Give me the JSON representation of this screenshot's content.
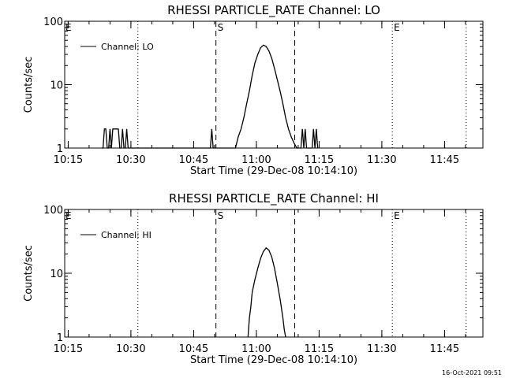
{
  "footer": {
    "timestamp": "16-Oct-2021 09:51"
  },
  "chart_data": [
    {
      "type": "line",
      "title": "RHESSI PARTICLE_RATE Channel: LO",
      "xlabel": "Start Time (29-Dec-08 10:14:10)",
      "ylabel": "Counts/sec",
      "yscale": "log",
      "ylim": [
        1,
        100
      ],
      "xlim_minutes": [
        "10:14:10",
        "11:54:10"
      ],
      "x_ticks": [
        "10:15",
        "10:30",
        "10:45",
        "11:00",
        "11:15",
        "11:30",
        "11:45"
      ],
      "y_ticks": [
        "1",
        "10",
        "100"
      ],
      "legend": {
        "position": "top-left",
        "entries": [
          "Channel: LO"
        ]
      },
      "vlines": [
        {
          "time": "10:31:40",
          "style": "dotted",
          "label": ""
        },
        {
          "time": "10:50:20",
          "style": "dashed",
          "label": "S"
        },
        {
          "time": "11:09:10",
          "style": "dashed",
          "label": ""
        },
        {
          "time": "11:32:30",
          "style": "dotted",
          "label": "E"
        },
        {
          "time": "11:50:10",
          "style": "dotted",
          "label": ""
        }
      ],
      "edge_label": "E",
      "series": [
        {
          "name": "Channel: LO",
          "x": [
            "10:23:00",
            "10:23:20",
            "10:23:40",
            "10:24:00",
            "10:24:20",
            "10:24:40",
            "10:25:00",
            "10:25:20",
            "10:25:40",
            "10:26:00",
            "10:26:20",
            "10:26:40",
            "10:27:00",
            "10:27:20",
            "10:27:40",
            "10:28:00",
            "10:28:20",
            "10:28:40",
            "10:29:00",
            "10:29:20",
            "10:29:40",
            "10:49:00",
            "10:49:20",
            "10:49:40",
            "10:50:00",
            "10:55:00",
            "10:55:40",
            "10:56:20",
            "10:57:00",
            "10:57:40",
            "10:58:20",
            "10:59:00",
            "10:59:40",
            "11:00:20",
            "11:01:00",
            "11:01:40",
            "11:02:20",
            "11:03:00",
            "11:03:40",
            "11:04:20",
            "11:05:00",
            "11:05:40",
            "11:06:20",
            "11:07:00",
            "11:07:40",
            "11:08:20",
            "11:09:00",
            "11:09:40",
            "11:10:20",
            "11:10:40",
            "11:11:00",
            "11:11:20",
            "11:11:40",
            "11:12:00",
            "11:13:20",
            "11:13:40",
            "11:14:00",
            "11:14:20",
            "11:14:40"
          ],
          "values": [
            1,
            1,
            2,
            2,
            1,
            1,
            2,
            1,
            2,
            2,
            2,
            2,
            2,
            1,
            1,
            2,
            1,
            1,
            2,
            1,
            1,
            1,
            2,
            1,
            1,
            1,
            1.5,
            2,
            3,
            5,
            8,
            14,
            22,
            30,
            38,
            42,
            40,
            34,
            26,
            18,
            12,
            8,
            5,
            3,
            2,
            1.5,
            1.2,
            1,
            1,
            1,
            2,
            1,
            2,
            1,
            1,
            2,
            1,
            2,
            1
          ]
        }
      ]
    },
    {
      "type": "line",
      "title": "RHESSI PARTICLE_RATE Channel: HI",
      "xlabel": "Start Time (29-Dec-08 10:14:10)",
      "ylabel": "Counts/sec",
      "yscale": "log",
      "ylim": [
        1,
        100
      ],
      "xlim_minutes": [
        "10:14:10",
        "11:54:10"
      ],
      "x_ticks": [
        "10:15",
        "10:30",
        "10:45",
        "11:00",
        "11:15",
        "11:30",
        "11:45"
      ],
      "y_ticks": [
        "1",
        "10",
        "100"
      ],
      "legend": {
        "position": "top-left",
        "entries": [
          "Channel: HI"
        ]
      },
      "vlines": [
        {
          "time": "10:31:40",
          "style": "dotted",
          "label": ""
        },
        {
          "time": "10:50:20",
          "style": "dashed",
          "label": "S"
        },
        {
          "time": "11:09:10",
          "style": "dashed",
          "label": ""
        },
        {
          "time": "11:32:30",
          "style": "dotted",
          "label": "E"
        },
        {
          "time": "11:50:10",
          "style": "dotted",
          "label": ""
        }
      ],
      "edge_label": "E",
      "series": [
        {
          "name": "Channel: HI",
          "x": [
            "10:58:00",
            "10:58:20",
            "10:58:40",
            "10:59:00",
            "10:59:40",
            "11:00:20",
            "11:01:00",
            "11:01:40",
            "11:02:20",
            "11:03:00",
            "11:03:40",
            "11:04:20",
            "11:05:00",
            "11:05:40",
            "11:06:20",
            "11:06:40",
            "11:07:00"
          ],
          "values": [
            1,
            2,
            3,
            5,
            8,
            12,
            17,
            22,
            25,
            23,
            18,
            12,
            7,
            4,
            2,
            1.3,
            1
          ]
        }
      ]
    }
  ]
}
